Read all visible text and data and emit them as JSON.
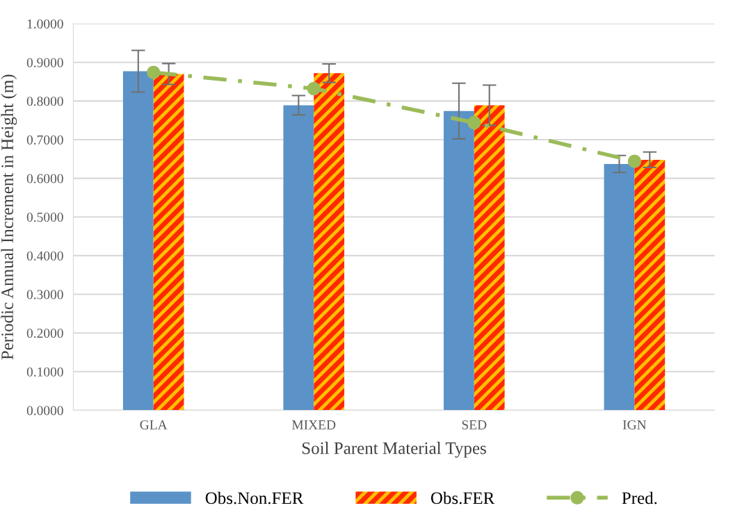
{
  "chart_data": {
    "type": "bar",
    "xlabel": "Soil Parent Material Types",
    "ylabel": "Periodic Annual Increment in Height (m)",
    "categories": [
      "GLA",
      "MIXED",
      "SED",
      "IGN"
    ],
    "series": [
      {
        "name": "Obs.Non.FER",
        "color": "#5b93c8",
        "values": [
          0.877,
          0.789,
          0.774,
          0.637
        ],
        "errors": [
          0.054,
          0.025,
          0.072,
          0.022
        ]
      },
      {
        "name": "Obs.FER",
        "color": "#ff2a00",
        "values": [
          0.87,
          0.872,
          0.789,
          0.648
        ],
        "errors": [
          0.027,
          0.024,
          0.052,
          0.02
        ]
      },
      {
        "name": "Pred.",
        "type": "line",
        "color": "#9bbb59",
        "values": [
          0.874,
          0.832,
          0.744,
          0.644
        ],
        "marker": "circle",
        "line_style": "dashed"
      }
    ],
    "ylim": [
      0,
      1.0
    ],
    "yticks": [
      {
        "value": 0,
        "label": "0.0000"
      },
      {
        "value": 0.1,
        "label": "0.1000"
      },
      {
        "value": 0.2,
        "label": "0.2000"
      },
      {
        "value": 0.3,
        "label": "0.3000"
      },
      {
        "value": 0.4,
        "label": "0.4000"
      },
      {
        "value": 0.5,
        "label": "0.5000"
      },
      {
        "value": 0.6,
        "label": "0.6000"
      },
      {
        "value": 0.7,
        "label": "0.7000"
      },
      {
        "value": 0.8,
        "label": "0.8000"
      },
      {
        "value": 0.9,
        "label": "0.9000"
      },
      {
        "value": 1.0,
        "label": "1.0000"
      }
    ],
    "grid": "y",
    "legend": "bottom"
  }
}
